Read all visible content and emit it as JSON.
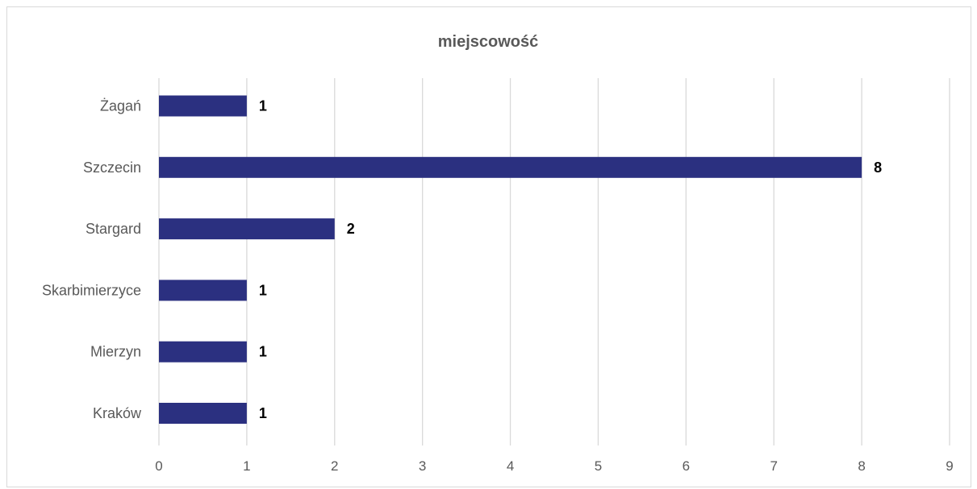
{
  "chart_data": {
    "type": "bar",
    "orientation": "horizontal",
    "title": "miejscowość",
    "categories": [
      "Kraków",
      "Mierzyn",
      "Skarbimierzyce",
      "Stargard",
      "Szczecin",
      "Żagań"
    ],
    "values": [
      1,
      1,
      1,
      2,
      8,
      1
    ],
    "xlabel": "",
    "ylabel": "",
    "xlim": [
      0,
      9
    ],
    "x_ticks": [
      "0",
      "1",
      "2",
      "3",
      "4",
      "5",
      "6",
      "7",
      "8",
      "9"
    ],
    "data_labels": [
      "1",
      "1",
      "1",
      "2",
      "8",
      "1"
    ],
    "grid": true,
    "legend": "none",
    "colors": {
      "bar": "#2b3080",
      "grid": "#d9d9d9",
      "axis_text": "#595959",
      "label_text": "#000000",
      "border": "#d9d9d9"
    }
  }
}
